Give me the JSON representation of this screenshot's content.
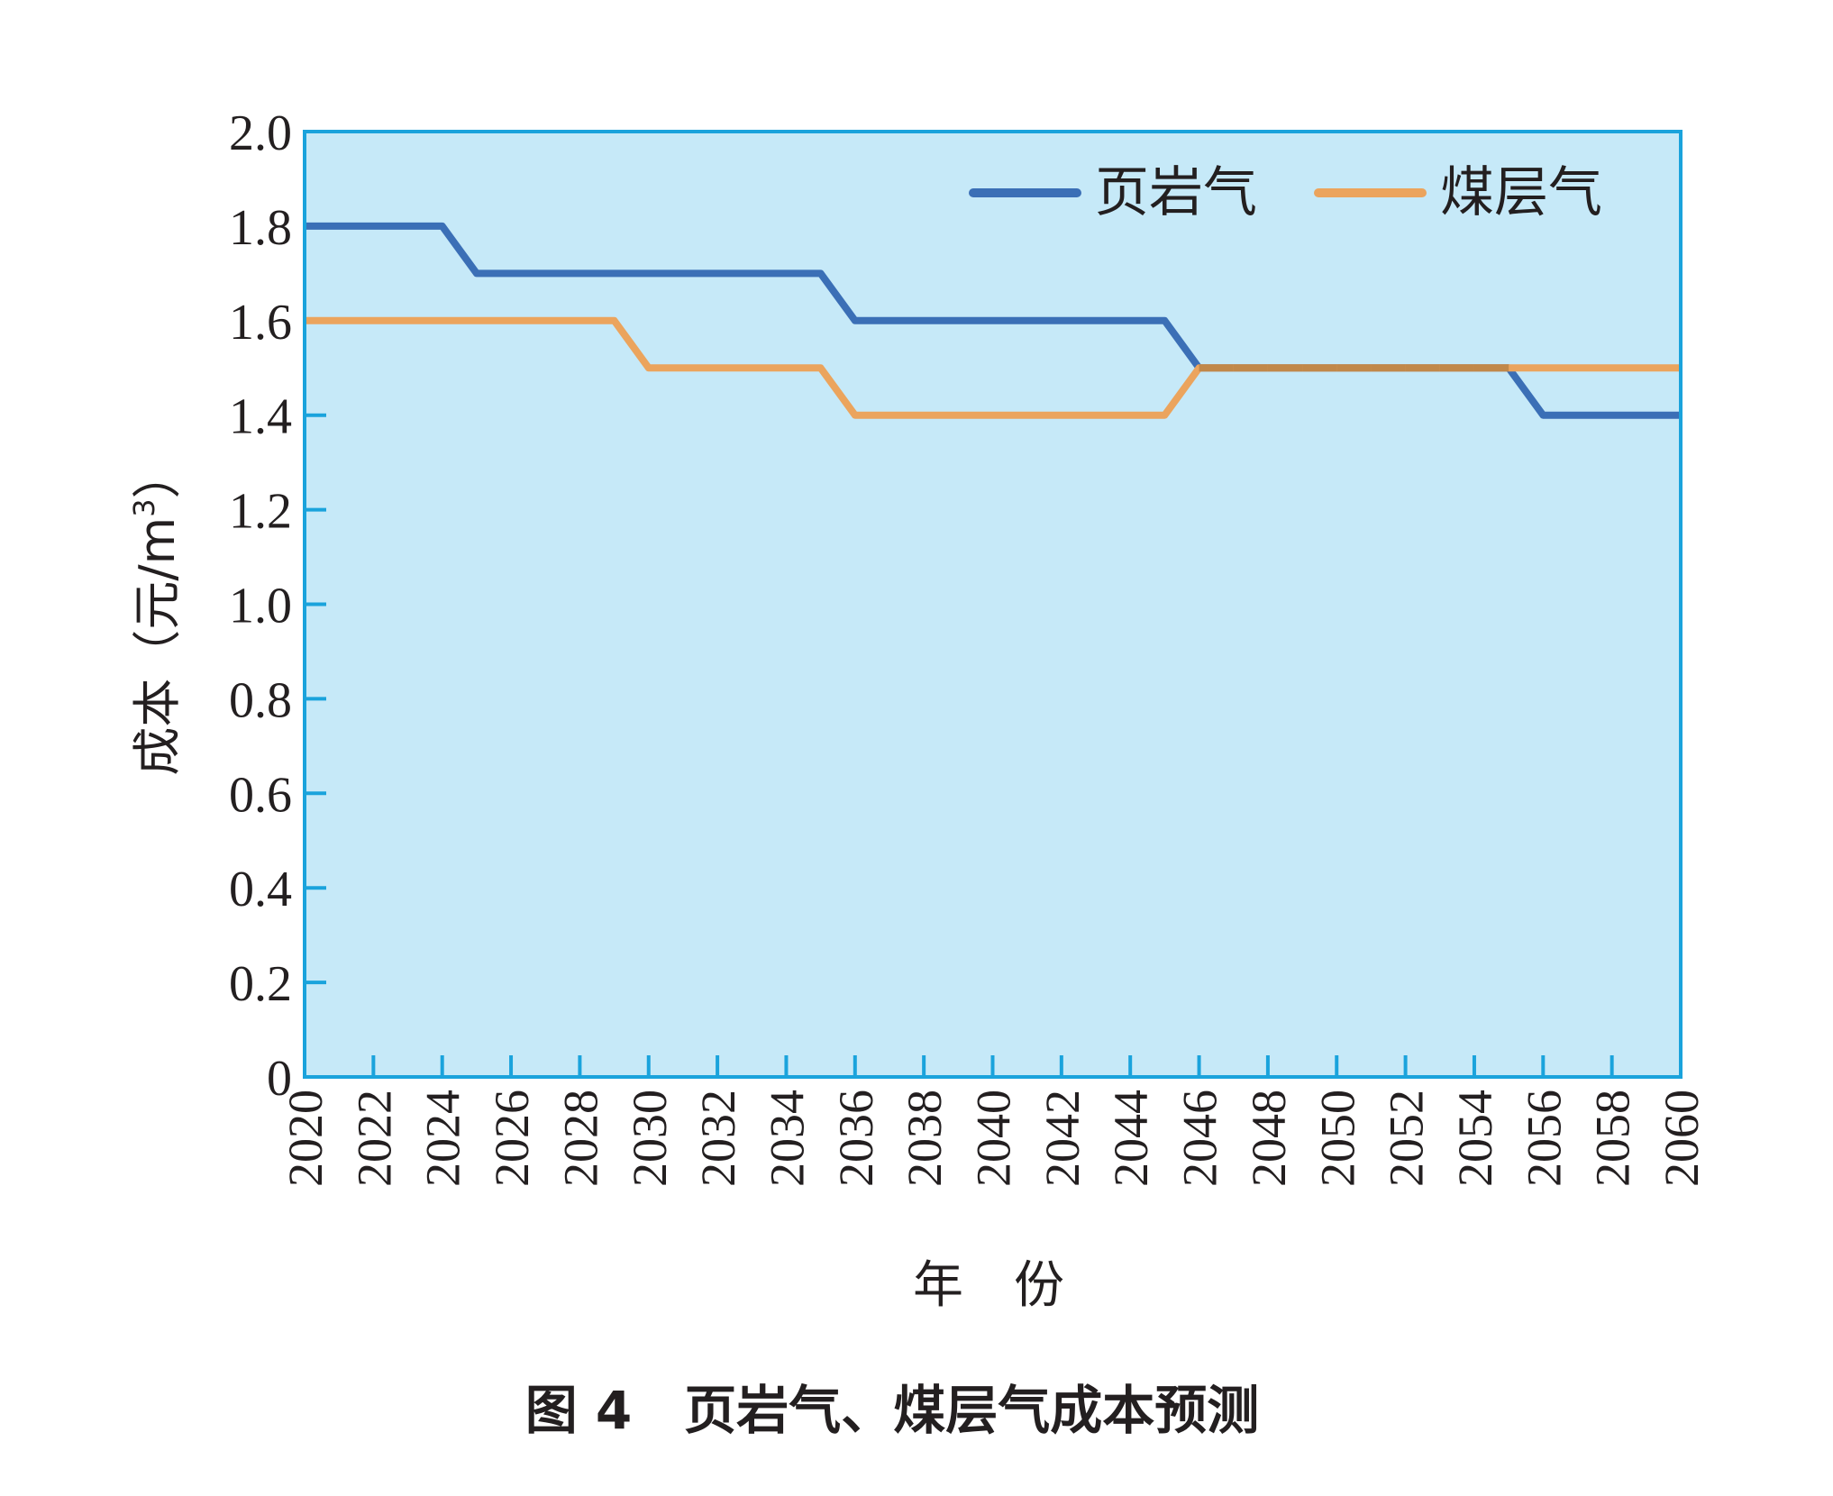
{
  "figure": {
    "caption": "图 4　页岩气、煤层气成本预测"
  },
  "colors": {
    "plot_bg": "#c6e9f8",
    "frame": "#1aa3dc",
    "series1": "#3b6fb6",
    "series2": "#eba45d",
    "overlap": "#c1884a"
  },
  "chart_data": {
    "type": "line",
    "title": "",
    "xlabel": "年　份",
    "ylabel_main": "成本（元/m",
    "ylabel_sup": "3",
    "ylabel_close": "）",
    "xlim": [
      2020,
      2060
    ],
    "ylim": [
      0,
      2.0
    ],
    "x_ticks": [
      "2020",
      "2022",
      "2024",
      "2026",
      "2028",
      "2030",
      "2032",
      "2034",
      "2036",
      "2038",
      "2040",
      "2042",
      "2044",
      "2046",
      "2048",
      "2050",
      "2052",
      "2054",
      "2056",
      "2058",
      "2060"
    ],
    "y_ticks": [
      "0",
      "0.2",
      "0.4",
      "0.6",
      "0.8",
      "1.0",
      "1.2",
      "1.4",
      "1.6",
      "1.8",
      "2.0"
    ],
    "legend_position": "top-right",
    "series": [
      {
        "name": "页岩气",
        "color_key": "series1",
        "x": [
          2020,
          2021,
          2022,
          2023,
          2024,
          2025,
          2026,
          2027,
          2028,
          2029,
          2030,
          2031,
          2032,
          2033,
          2034,
          2035,
          2036,
          2037,
          2038,
          2039,
          2040,
          2041,
          2042,
          2043,
          2044,
          2045,
          2046,
          2047,
          2048,
          2049,
          2050,
          2051,
          2052,
          2053,
          2054,
          2055,
          2056,
          2057,
          2058,
          2059,
          2060
        ],
        "values": [
          1.8,
          1.8,
          1.8,
          1.8,
          1.8,
          1.7,
          1.7,
          1.7,
          1.7,
          1.7,
          1.7,
          1.7,
          1.7,
          1.7,
          1.7,
          1.7,
          1.6,
          1.6,
          1.6,
          1.6,
          1.6,
          1.6,
          1.6,
          1.6,
          1.6,
          1.6,
          1.5,
          1.5,
          1.5,
          1.5,
          1.5,
          1.5,
          1.5,
          1.5,
          1.5,
          1.5,
          1.4,
          1.4,
          1.4,
          1.4,
          1.4
        ]
      },
      {
        "name": "煤层气",
        "color_key": "series2",
        "x": [
          2020,
          2021,
          2022,
          2023,
          2024,
          2025,
          2026,
          2027,
          2028,
          2029,
          2030,
          2031,
          2032,
          2033,
          2034,
          2035,
          2036,
          2037,
          2038,
          2039,
          2040,
          2041,
          2042,
          2043,
          2044,
          2045,
          2046,
          2047,
          2048,
          2049,
          2050,
          2051,
          2052,
          2053,
          2054,
          2055,
          2056,
          2057,
          2058,
          2059,
          2060
        ],
        "values": [
          1.6,
          1.6,
          1.6,
          1.6,
          1.6,
          1.6,
          1.6,
          1.6,
          1.6,
          1.6,
          1.5,
          1.5,
          1.5,
          1.5,
          1.5,
          1.5,
          1.4,
          1.4,
          1.4,
          1.4,
          1.4,
          1.4,
          1.4,
          1.4,
          1.4,
          1.4,
          1.5,
          1.5,
          1.5,
          1.5,
          1.5,
          1.5,
          1.5,
          1.5,
          1.5,
          1.5,
          1.5,
          1.5,
          1.5,
          1.5,
          1.5
        ]
      }
    ]
  }
}
